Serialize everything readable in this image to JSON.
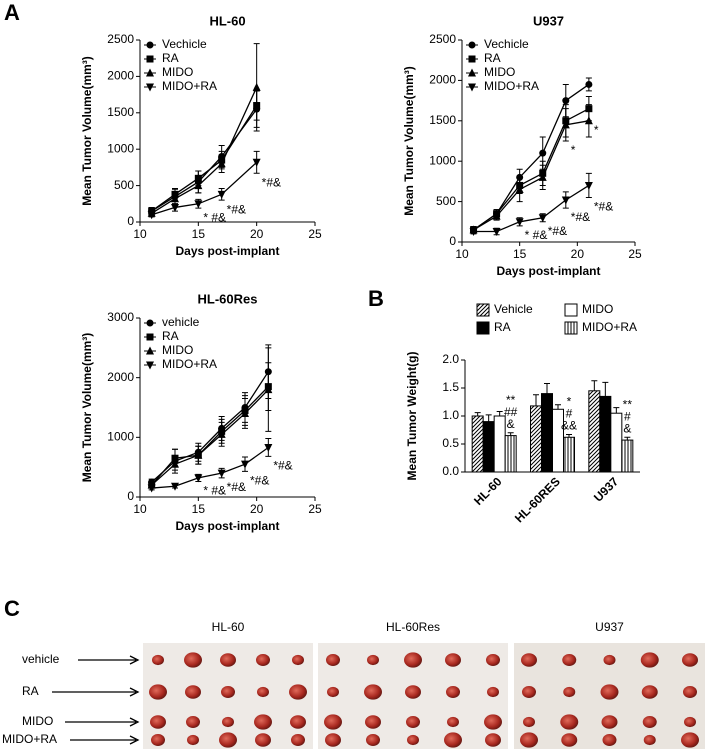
{
  "panel_labels": [
    "A",
    "B",
    "C"
  ],
  "chart_data": [
    {
      "type": "line",
      "title": "HL-60",
      "xlabel": "Days post-implant",
      "ylabel": "Mean Tumor Volume(mm³)",
      "x": [
        11,
        13,
        15,
        17,
        20
      ],
      "xlim": [
        10,
        25
      ],
      "xticks": [
        10,
        15,
        20,
        25
      ],
      "ylim": [
        0,
        2500
      ],
      "yticks": [
        0,
        500,
        1000,
        1500,
        2000,
        2500
      ],
      "series": [
        {
          "name": "Vechicle",
          "color": "#000000",
          "marker": "circle",
          "values": [
            150,
            350,
            550,
            900,
            1550
          ],
          "errors": [
            50,
            100,
            150,
            150,
            250
          ]
        },
        {
          "name": "RA",
          "color": "#000000",
          "marker": "square",
          "values": [
            150,
            380,
            600,
            850,
            1600
          ],
          "errors": [
            50,
            80,
            100,
            120,
            200
          ]
        },
        {
          "name": "MIDO",
          "color": "#000000",
          "marker": "triangle-up",
          "values": [
            120,
            320,
            500,
            800,
            1850
          ],
          "errors": [
            40,
            80,
            100,
            120,
            600
          ]
        },
        {
          "name": "MIDO+RA",
          "color": "#000000",
          "marker": "triangle-down",
          "values": [
            100,
            200,
            250,
            380,
            820
          ],
          "errors": [
            30,
            50,
            60,
            80,
            150
          ],
          "labels": [
            null,
            null,
            "* #&",
            "*#&",
            "*#&"
          ]
        }
      ]
    },
    {
      "type": "line",
      "title": "U937",
      "xlabel": "Days post-implant",
      "ylabel": "Mean Tumor Volume(mm³)",
      "x": [
        11,
        13,
        15,
        17,
        19,
        21
      ],
      "xlim": [
        10,
        25
      ],
      "xticks": [
        10,
        15,
        20,
        25
      ],
      "ylim": [
        0,
        2500
      ],
      "yticks": [
        0,
        500,
        1000,
        1500,
        2000,
        2500
      ],
      "series": [
        {
          "name": "Vechicle",
          "color": "#000000",
          "marker": "circle",
          "values": [
            150,
            350,
            800,
            1100,
            1750,
            1950
          ],
          "errors": [
            40,
            50,
            100,
            200,
            200,
            80
          ]
        },
        {
          "name": "RA",
          "color": "#000000",
          "marker": "square",
          "values": [
            150,
            350,
            700,
            850,
            1500,
            1650
          ],
          "errors": [
            40,
            50,
            100,
            150,
            200,
            150
          ],
          "labels": [
            null,
            null,
            null,
            null,
            null,
            "*"
          ]
        },
        {
          "name": "MIDO",
          "color": "#000000",
          "marker": "triangle-up",
          "values": [
            150,
            320,
            650,
            800,
            1450,
            1500
          ],
          "errors": [
            40,
            50,
            150,
            150,
            200,
            200
          ],
          "labels": [
            null,
            null,
            null,
            null,
            "*",
            null
          ]
        },
        {
          "name": "MIDO+RA",
          "color": "#000000",
          "marker": "triangle-down",
          "values": [
            130,
            130,
            250,
            300,
            520,
            700
          ],
          "errors": [
            30,
            40,
            50,
            50,
            100,
            150
          ],
          "labels": [
            null,
            null,
            "* #&",
            "*#&",
            "*#&",
            "*#&"
          ]
        }
      ]
    },
    {
      "type": "line",
      "title": "HL-60Res",
      "xlabel": "Days post-implant",
      "ylabel": "Mean Tumor Volume(mm³)",
      "x": [
        11,
        13,
        15,
        17,
        19,
        21
      ],
      "xlim": [
        10,
        25
      ],
      "xticks": [
        10,
        15,
        20,
        25
      ],
      "ylim": [
        0,
        3000
      ],
      "yticks": [
        0,
        1000,
        2000,
        3000
      ],
      "series": [
        {
          "name": "vehicle",
          "color": "#000000",
          "marker": "circle",
          "values": [
            250,
            600,
            750,
            1150,
            1500,
            2100
          ],
          "errors": [
            50,
            200,
            150,
            200,
            250,
            450
          ]
        },
        {
          "name": "RA",
          "color": "#000000",
          "marker": "square",
          "values": [
            200,
            650,
            700,
            1100,
            1450,
            1850
          ],
          "errors": [
            50,
            150,
            150,
            200,
            250,
            400
          ]
        },
        {
          "name": "MIDO",
          "color": "#000000",
          "marker": "triangle-up",
          "values": [
            200,
            550,
            700,
            1050,
            1400,
            1800
          ],
          "errors": [
            50,
            100,
            150,
            200,
            250,
            700
          ]
        },
        {
          "name": "MIDO+RA",
          "color": "#000000",
          "marker": "triangle-down",
          "values": [
            150,
            180,
            320,
            400,
            550,
            830
          ],
          "errors": [
            30,
            30,
            60,
            80,
            120,
            150
          ],
          "labels": [
            null,
            null,
            "* #&",
            "*#&",
            "*#&",
            "*#&"
          ]
        }
      ]
    },
    {
      "type": "bar",
      "ylabel": "Mean Tumor Weight(g)",
      "categories": [
        "HL-60",
        "HL-60RES",
        "U937"
      ],
      "ylim": [
        0,
        2
      ],
      "yticks": [
        {
          "value": 0,
          "label": "0.0"
        },
        {
          "value": 0.5,
          "label": "0.5"
        },
        {
          "value": 1,
          "label": "1.0"
        },
        {
          "value": 1.5,
          "label": "1.5"
        },
        {
          "value": 2,
          "label": "2.0"
        }
      ],
      "series": [
        {
          "name": "Vehicle",
          "color": "#000000",
          "pattern": "diagonal-hatch",
          "values": [
            1.0,
            1.18,
            1.45
          ],
          "errors": [
            0.06,
            0.2,
            0.18
          ]
        },
        {
          "name": "RA",
          "color": "#000000",
          "pattern": "solid",
          "values": [
            0.9,
            1.4,
            1.35
          ],
          "errors": [
            0.12,
            0.18,
            0.25
          ]
        },
        {
          "name": "MIDO",
          "color": "#000000",
          "pattern": "none",
          "values": [
            1.0,
            1.12,
            1.05
          ],
          "errors": [
            0.08,
            0.08,
            0.1
          ]
        },
        {
          "name": "MIDO+RA",
          "color": "#000000",
          "pattern": "vertical-stripes",
          "values": [
            0.65,
            0.62,
            0.57
          ],
          "errors": [
            0.05,
            0.05,
            0.05
          ],
          "labels": [
            [
              "**",
              "##",
              "&"
            ],
            [
              "*",
              "#",
              "&&"
            ],
            [
              "**",
              "#",
              "&"
            ]
          ]
        }
      ]
    }
  ],
  "photo_panel": {
    "columns": [
      "HL-60",
      "HL-60Res",
      "U937"
    ],
    "rows": [
      "vehicle",
      "RA",
      "MIDO",
      "MIDO+RA"
    ]
  }
}
